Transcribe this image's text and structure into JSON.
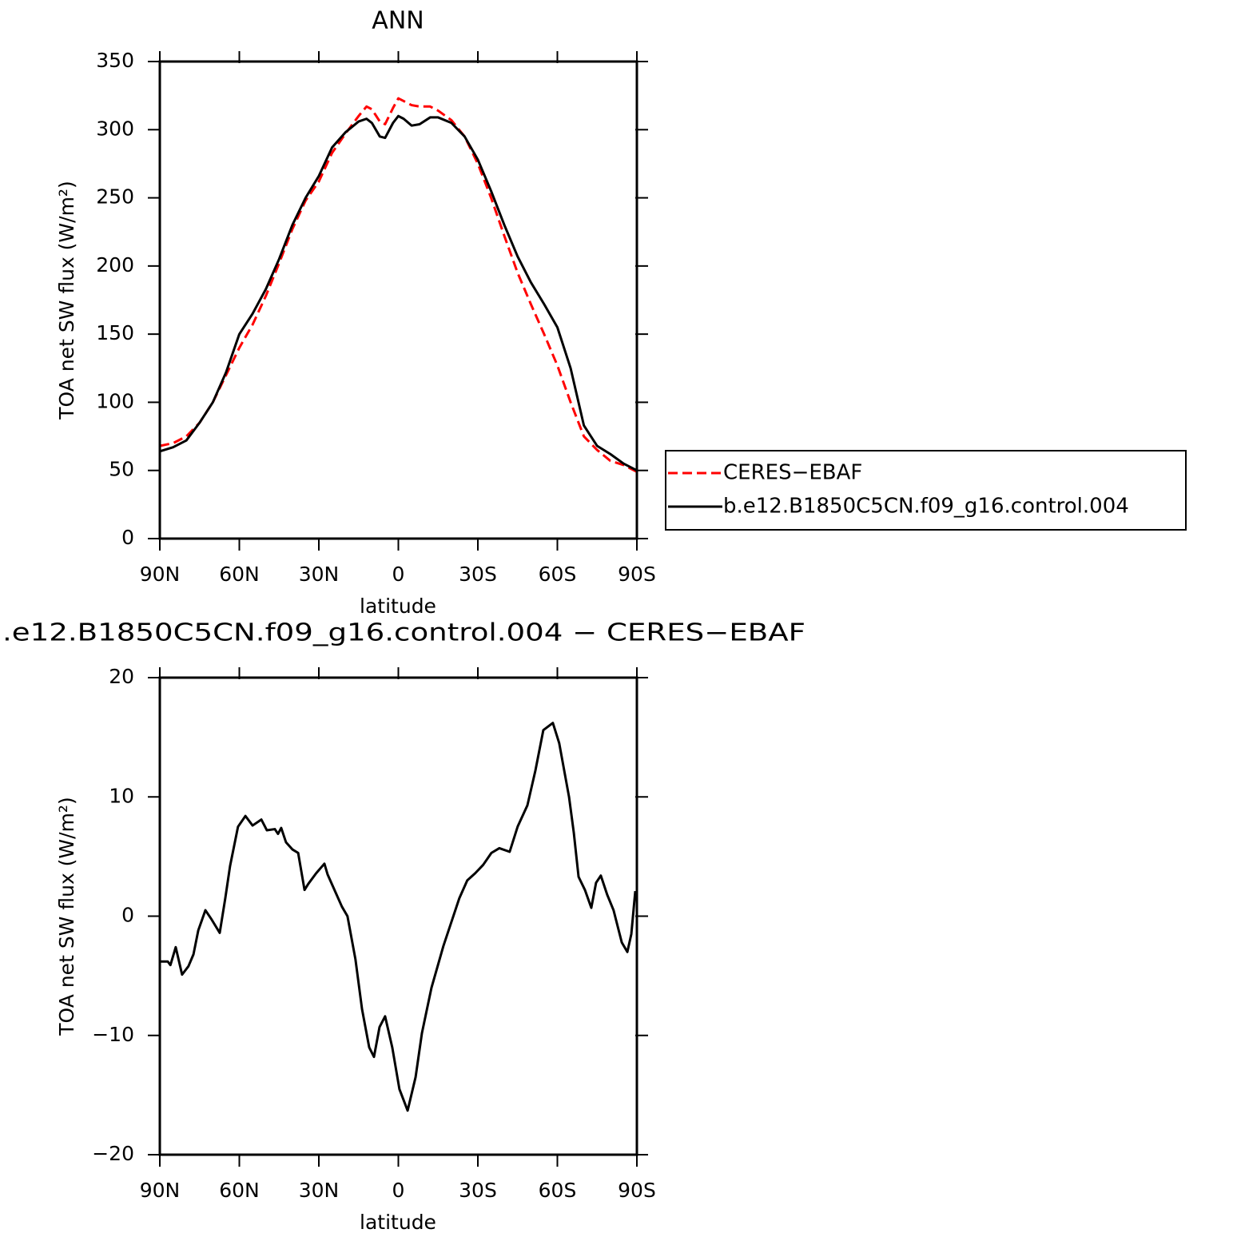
{
  "chart_data": [
    {
      "type": "line",
      "title": "ANN",
      "xlabel": "latitude",
      "ylabel": "TOA net SW flux (W/m²)",
      "x": [
        90,
        85,
        80,
        75,
        70,
        65,
        60,
        55,
        50,
        45,
        40,
        35,
        30,
        25,
        20,
        15,
        12,
        10,
        7,
        5,
        2,
        0,
        -2,
        -5,
        -8,
        -12,
        -15,
        -20,
        -25,
        -30,
        -35,
        -40,
        -45,
        -50,
        -55,
        -60,
        -65,
        -70,
        -75,
        -80,
        -85,
        -90
      ],
      "series": [
        {
          "name": "CERES−EBAF",
          "color": "#ff0000",
          "linestyle": "dashed",
          "values": [
            68,
            70,
            75,
            85,
            100,
            120,
            140,
            157,
            178,
            202,
            227,
            248,
            262,
            283,
            297,
            310,
            317,
            315,
            306,
            304,
            316,
            323,
            321,
            318,
            317,
            317,
            314,
            307,
            295,
            275,
            250,
            222,
            195,
            172,
            150,
            127,
            100,
            75,
            65,
            57,
            54,
            49
          ]
        },
        {
          "name": "b.e12.B1850C5CN.f09_g16.control.004",
          "color": "#000000",
          "linestyle": "solid",
          "values": [
            64,
            67,
            72,
            85,
            100,
            122,
            150,
            165,
            183,
            205,
            230,
            250,
            266,
            287,
            298,
            306,
            308,
            305,
            295,
            294,
            305,
            310,
            308,
            303,
            304,
            309,
            309,
            305,
            295,
            278,
            255,
            230,
            207,
            188,
            172,
            155,
            125,
            83,
            68,
            62,
            55,
            50
          ]
        }
      ],
      "xlim": [
        90,
        -90
      ],
      "xticks": [
        {
          "value": 90,
          "label": "90N"
        },
        {
          "value": 60,
          "label": "60N"
        },
        {
          "value": 30,
          "label": "30N"
        },
        0,
        {
          "value": -30,
          "label": "30S"
        },
        {
          "value": -60,
          "label": "60S"
        },
        {
          "value": -90,
          "label": "90S"
        }
      ],
      "ylim": [
        0,
        350
      ],
      "yticks": [
        0,
        50,
        100,
        150,
        200,
        250,
        300,
        350
      ],
      "legend": "right"
    },
    {
      "type": "line",
      "title": ".e12.B1850C5CN.f09_g16.control.004 − CERES−EBAF",
      "xlabel": "latitude",
      "ylabel": "TOA net SW flux (W/m²)",
      "x": [
        90,
        87,
        86,
        84,
        81.6,
        79.2,
        77.3,
        75.5,
        72.8,
        70.4,
        67.4,
        65.3,
        63.5,
        60.5,
        57.7,
        55,
        51.7,
        49.6,
        46.6,
        45.4,
        44.2,
        42.4,
        40,
        37.8,
        35.4,
        34,
        31,
        27.9,
        26.7,
        23.7,
        21.3,
        19.2,
        16.2,
        13.7,
        11,
        9.2,
        7.1,
        5,
        2.3,
        -0.4,
        -3.5,
        -6.5,
        -8.9,
        -12.5,
        -17,
        -20,
        -23,
        -26,
        -29,
        -32,
        -35.1,
        -38.1,
        -42,
        -45,
        -48.7,
        -51.7,
        -54.7,
        -58.3,
        -60.7,
        -64.4,
        -66.2,
        -68,
        -70.4,
        -72.8,
        -74.6,
        -76.4,
        -78.8,
        -81.2,
        -84.3,
        -86.4,
        -87.9,
        -89.4
      ],
      "series": [
        {
          "color": "#000000",
          "values": [
            -3.8,
            -3.8,
            -4.1,
            -2.6,
            -4.9,
            -4.2,
            -3.2,
            -1.2,
            0.5,
            -0.3,
            -1.4,
            1.5,
            4.2,
            7.5,
            8.4,
            7.6,
            8.1,
            7.2,
            7.3,
            6.9,
            7.4,
            6.2,
            5.6,
            5.3,
            2.2,
            2.7,
            3.6,
            4.4,
            3.5,
            2,
            0.8,
            0,
            -3.6,
            -7.8,
            -11,
            -11.8,
            -9.3,
            -8.4,
            -11,
            -14.5,
            -16.3,
            -13.5,
            -9.8,
            -6,
            -2.5,
            -0.5,
            1.5,
            3,
            3.6,
            4.3,
            5.3,
            5.7,
            5.4,
            7.5,
            9.3,
            12.2,
            15.6,
            16.2,
            14.5,
            10,
            7,
            3.3,
            2.2,
            0.7,
            2.8,
            3.4,
            1.8,
            0.5,
            -2.2,
            -3,
            -1.5,
            2.1
          ]
        }
      ],
      "xlim": [
        90,
        -90
      ],
      "xticks": [
        {
          "value": 90,
          "label": "90N"
        },
        {
          "value": 60,
          "label": "60N"
        },
        {
          "value": 30,
          "label": "30N"
        },
        0,
        {
          "value": -30,
          "label": "30S"
        },
        {
          "value": -60,
          "label": "60S"
        },
        {
          "value": -90,
          "label": "90S"
        }
      ],
      "ylim": [
        -20,
        20
      ],
      "yticks": [
        {
          "value": -20,
          "label": "−20"
        },
        {
          "value": -10,
          "label": "−10"
        },
        0,
        10,
        20
      ]
    }
  ]
}
